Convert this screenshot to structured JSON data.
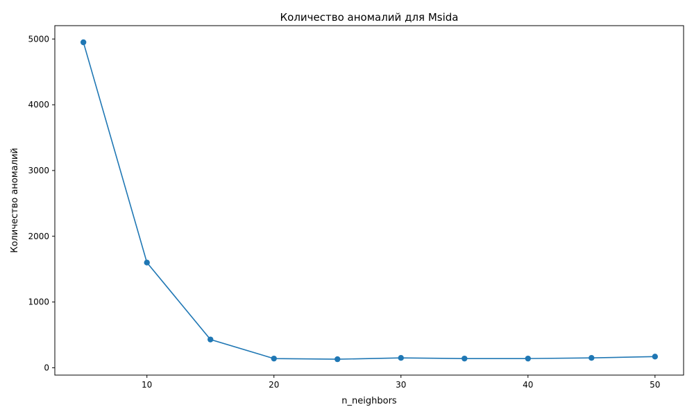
{
  "chart_data": {
    "type": "line",
    "title": "Количество аномалий для Msida",
    "xlabel": "n_neighbors",
    "ylabel": "Количество аномалий",
    "x": [
      5,
      10,
      15,
      20,
      25,
      30,
      35,
      40,
      45,
      50
    ],
    "series": [
      {
        "values": [
          4950,
          1600,
          430,
          140,
          130,
          150,
          140,
          140,
          150,
          170
        ]
      }
    ],
    "xlim": [
      2.75,
      52.25
    ],
    "ylim": [
      -111.5,
      5203
    ],
    "xticks": [
      10,
      20,
      30,
      40,
      50
    ],
    "yticks": [
      0,
      1000,
      2000,
      3000,
      4000,
      5000
    ],
    "grid": false,
    "legend": "none",
    "colors": {
      "line": "#1f77b4",
      "marker": "#1f77b4",
      "axes": "#000000"
    }
  }
}
